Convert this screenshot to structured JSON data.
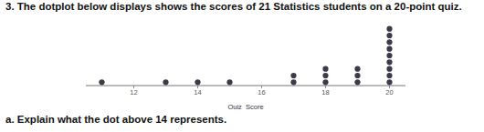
{
  "question": "3. The dotplot below displays shows the scores of 21 Statistics students on a 20-point quiz.",
  "chart_data": {
    "type": "dotplot",
    "x_label": "Quiz_Score",
    "x": [
      11,
      13,
      14,
      15,
      17,
      18,
      19,
      20
    ],
    "values": [
      1,
      1,
      1,
      1,
      2,
      3,
      3,
      9
    ],
    "xlim": [
      10.5,
      20.5
    ],
    "xticks": [
      12,
      14,
      16,
      18,
      20
    ],
    "color": "#3a3a48",
    "marker": "circle",
    "grid": false,
    "tick_labels": "x"
  },
  "part_a": "a. Explain what the dot above 14 represents."
}
